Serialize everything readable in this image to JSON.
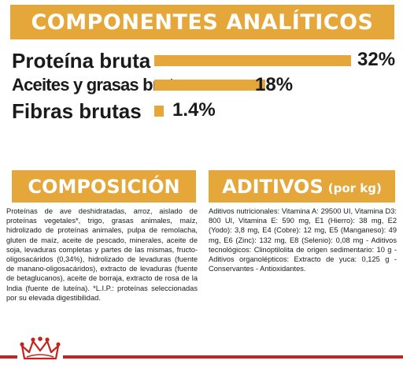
{
  "header": {
    "title": "COMPONENTES ANALÍTICOS"
  },
  "nutrients": [
    {
      "label": "Proteína bruta",
      "value": "32%",
      "fraction": 0.32
    },
    {
      "label": "Aceites y grasas brutos",
      "value": "18%",
      "fraction": 0.18
    },
    {
      "label": "Fibras brutas",
      "value": "1.4%",
      "fraction": 0.014
    }
  ],
  "composicion": {
    "title": "COMPOSICIÓN",
    "text": "Proteínas de ave deshidratadas, arroz, aislado de proteínas vegetales*, trigo, grasas animales, maíz, hidrolizado de proteínas animales, pulpa de remolacha, gluten de maíz, aceite de pescado, minerales, aceite de soja, levaduras completas y partes de las mismas, fructo-oligosacáridos (0,34%), hidrolizado de levaduras (fuente de manano-oligosacáridos), extracto de levaduras (fuente de betaglucanos), aceite de borraja, extracto de rosa de la India (fuente de luteína). *L.I.P.: proteínas seleccionadas por su elevada digestibilidad."
  },
  "aditivos": {
    "title": "ADITIVOS",
    "subtitle": "(por kg)",
    "text": "Aditivos nutricionales: Vitamina A: 29500 UI, Vitamina D3: 800 UI, Vitamina E: 590 mg, E1 (Hierro): 38 mg, E2 (Yodo): 3,8 mg, E4 (Cobre): 12 mg, E5 (Manganeso): 49 mg, E6 (Zinc): 132 mg, E8 (Selenio): 0,08 mg - Aditivos tecnológicos: Clinoptilolita de origen sedimentario: 10 g - Aditivos organolépticos: Extracto de yuca: 0,125 g - Conservantes - Antioxidantes."
  },
  "colors": {
    "accent": "#e5a63a",
    "brand_red": "#c4241f",
    "text": "#1a1a1a"
  },
  "footer": {
    "logo_icon": "royal-canin-crown-icon"
  }
}
